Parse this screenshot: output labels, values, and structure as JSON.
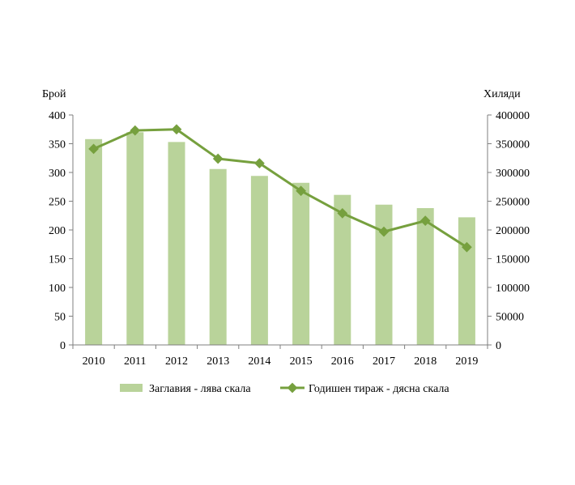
{
  "chart_data": {
    "type": "bar+line",
    "categories": [
      "2010",
      "2011",
      "2012",
      "2013",
      "2014",
      "2015",
      "2016",
      "2017",
      "2018",
      "2019"
    ],
    "series": [
      {
        "name": "Заглавия - лява скала",
        "type": "bar",
        "axis": "left",
        "color": "#b9d39a",
        "values": [
          358,
          370,
          353,
          306,
          294,
          282,
          261,
          244,
          238,
          222
        ]
      },
      {
        "name": "Годишен тираж - дясна скала",
        "type": "line",
        "axis": "right",
        "color": "#76a03e",
        "values": [
          341000,
          373000,
          375000,
          324000,
          316000,
          268000,
          229000,
          197000,
          216000,
          170000
        ]
      }
    ],
    "left_axis": {
      "title": "Брой",
      "ylim": [
        0,
        400
      ],
      "ticks": [
        "0",
        "50",
        "100",
        "150",
        "200",
        "250",
        "300",
        "350",
        "400"
      ]
    },
    "right_axis": {
      "title": "Хиляди",
      "ylim": [
        0,
        400000
      ],
      "ticks": [
        "0",
        "50000",
        "100000",
        "150000",
        "200000",
        "250000",
        "300000",
        "350000",
        "400000"
      ]
    },
    "grid": false,
    "legend_position": "bottom"
  }
}
